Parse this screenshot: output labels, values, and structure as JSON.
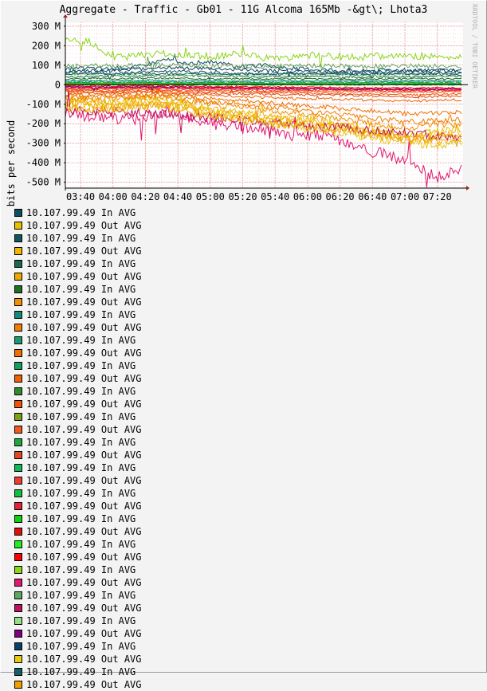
{
  "window": {
    "title": "Aggregate - Traffic - Gb01 - 11G Alcoma 165Mb -&gt\\; Lhota3",
    "watermark": "RRDTOOL / TOBI OETIKER"
  },
  "chart_data": {
    "type": "line",
    "title": "Aggregate - Traffic - Gb01 - 11G Alcoma 165Mb -&gt\\; Lhota3",
    "ylabel": "bits per second",
    "xlabel": "",
    "ylim": [
      -530,
      320
    ],
    "grid": true,
    "y_ticks": [
      {
        "value": 300,
        "label": "300 M"
      },
      {
        "value": 200,
        "label": "200 M"
      },
      {
        "value": 100,
        "label": "100 M"
      },
      {
        "value": 0,
        "label": "0"
      },
      {
        "value": -100,
        "label": "-100 M"
      },
      {
        "value": -200,
        "label": "-200 M"
      },
      {
        "value": -300,
        "label": "-300 M"
      },
      {
        "value": -400,
        "label": "-400 M"
      },
      {
        "value": -500,
        "label": "-500 M"
      }
    ],
    "x_ticks": [
      "03:40",
      "04:00",
      "04:20",
      "04:40",
      "05:00",
      "05:20",
      "05:40",
      "06:00",
      "06:20",
      "06:40",
      "07:00",
      "07:20"
    ],
    "series": [
      {
        "name": "10.107.99.49 In AVG",
        "color": "#0d4f5f",
        "values": [
          80,
          85,
          82,
          95,
          130,
          110,
          120,
          90,
          100,
          85,
          80,
          75,
          70,
          78,
          72,
          70,
          74
        ]
      },
      {
        "name": "10.107.99.49 Out AVG",
        "color": "#e8c000",
        "values": [
          -80,
          -85,
          -90,
          -70,
          -75,
          -100,
          -130,
          -140,
          -160,
          -170,
          -180,
          -200,
          -230,
          -250,
          -260,
          -240,
          -230
        ]
      },
      {
        "name": "10.107.99.49 In AVG",
        "color": "#14565c",
        "values": [
          60,
          62,
          58,
          65,
          70,
          66,
          60,
          58,
          55,
          60,
          56,
          54,
          52,
          58,
          55,
          60,
          58
        ]
      },
      {
        "name": "10.107.99.49 Out AVG",
        "color": "#f5b400",
        "values": [
          -90,
          -95,
          -100,
          -80,
          -85,
          -110,
          -140,
          -150,
          -170,
          -180,
          -200,
          -210,
          -220,
          -240,
          -270,
          -260,
          -250
        ]
      },
      {
        "name": "10.107.99.49 In AVG",
        "color": "#1a6a4e",
        "values": [
          40,
          42,
          45,
          44,
          48,
          46,
          44,
          42,
          40,
          42,
          44,
          40,
          38,
          42,
          40,
          44,
          42
        ]
      },
      {
        "name": "10.107.99.49 Out AVG",
        "color": "#f0a800",
        "values": [
          -100,
          -105,
          -110,
          -95,
          -100,
          -120,
          -150,
          -160,
          -180,
          -190,
          -200,
          -220,
          -240,
          -260,
          -280,
          -290,
          -300
        ]
      },
      {
        "name": "10.107.99.49 In AVG",
        "color": "#216e24",
        "values": [
          30,
          32,
          30,
          34,
          33,
          32,
          30,
          31,
          30,
          32,
          30,
          29,
          28,
          30,
          31,
          30,
          29
        ]
      },
      {
        "name": "10.107.99.49 Out AVG",
        "color": "#f09000",
        "values": [
          -70,
          -72,
          -75,
          -65,
          -68,
          -80,
          -100,
          -110,
          -130,
          -140,
          -160,
          -170,
          -190,
          -210,
          -220,
          -200,
          -210
        ]
      },
      {
        "name": "10.107.99.49 In AVG",
        "color": "#168a7a",
        "values": [
          20,
          22,
          21,
          24,
          23,
          22,
          21,
          20,
          22,
          21,
          20,
          22,
          21,
          20,
          22,
          21,
          20
        ]
      },
      {
        "name": "10.107.99.49 Out AVG",
        "color": "#f07e00",
        "values": [
          -60,
          -62,
          -64,
          -55,
          -58,
          -70,
          -90,
          -95,
          -110,
          -120,
          -140,
          -150,
          -170,
          -180,
          -190,
          -185,
          -180
        ]
      },
      {
        "name": "10.107.99.49 In AVG",
        "color": "#179c74",
        "values": [
          15,
          16,
          15,
          17,
          16,
          15,
          16,
          15,
          14,
          15,
          16,
          15,
          14,
          15,
          16,
          15,
          14
        ]
      },
      {
        "name": "10.107.99.49 Out AVG",
        "color": "#f07000",
        "values": [
          -50,
          -52,
          -55,
          -48,
          -50,
          -60,
          -70,
          -80,
          -90,
          -100,
          -110,
          -120,
          -130,
          -140,
          -150,
          -145,
          -140
        ]
      },
      {
        "name": "10.107.99.49 In AVG",
        "color": "#14a05c",
        "values": [
          10,
          11,
          10,
          12,
          11,
          10,
          11,
          10,
          9,
          10,
          11,
          10,
          9,
          10,
          11,
          10,
          9
        ]
      },
      {
        "name": "10.107.99.49 Out AVG",
        "color": "#f06200",
        "values": [
          -40,
          -42,
          -44,
          -38,
          -40,
          -48,
          -55,
          -60,
          -65,
          -70,
          -72,
          -75,
          -78,
          -80,
          -82,
          -80,
          -78
        ]
      },
      {
        "name": "10.107.99.49 In AVG",
        "color": "#2e8c2e",
        "values": [
          8,
          9,
          8,
          10,
          9,
          8,
          9,
          8,
          7,
          8,
          9,
          8,
          7,
          8,
          9,
          8,
          7
        ]
      },
      {
        "name": "10.107.99.49 Out AVG",
        "color": "#f05400",
        "values": [
          -30,
          -31,
          -32,
          -28,
          -30,
          -34,
          -36,
          -38,
          -40,
          -42,
          -44,
          -46,
          -48,
          -50,
          -52,
          -50,
          -48
        ]
      },
      {
        "name": "10.107.99.49 In AVG",
        "color": "#7ea014",
        "values": [
          6,
          7,
          6,
          8,
          7,
          6,
          7,
          6,
          5,
          6,
          7,
          6,
          5,
          6,
          7,
          6,
          5
        ]
      },
      {
        "name": "10.107.99.49 Out AVG",
        "color": "#f05a1e",
        "values": [
          -25,
          -26,
          -27,
          -24,
          -25,
          -28,
          -30,
          -31,
          -32,
          -33,
          -34,
          -35,
          -36,
          -37,
          -38,
          -37,
          -36
        ]
      },
      {
        "name": "10.107.99.49 In AVG",
        "color": "#1ea83c",
        "values": [
          4,
          5,
          4,
          6,
          5,
          4,
          5,
          4,
          3,
          4,
          5,
          4,
          3,
          4,
          5,
          4,
          3
        ]
      },
      {
        "name": "10.107.99.49 Out AVG",
        "color": "#e04a1e",
        "values": [
          -35,
          -38,
          -40,
          -36,
          -38,
          -42,
          -45,
          -46,
          -48,
          -50,
          -52,
          -54,
          -56,
          -58,
          -62,
          -60,
          -58
        ]
      },
      {
        "name": "10.107.99.49 In AVG",
        "color": "#10b85a",
        "values": [
          3,
          4,
          3,
          5,
          4,
          3,
          4,
          3,
          2,
          3,
          4,
          3,
          2,
          3,
          4,
          3,
          2
        ]
      },
      {
        "name": "10.107.99.49 Out AVG",
        "color": "#f03c2c",
        "values": [
          -20,
          -21,
          -22,
          -19,
          -20,
          -22,
          -24,
          -25,
          -26,
          -27,
          -28,
          -29,
          -30,
          -31,
          -32,
          -31,
          -30
        ]
      },
      {
        "name": "10.107.99.49 In AVG",
        "color": "#10c040",
        "values": [
          2,
          3,
          2,
          4,
          3,
          2,
          3,
          2,
          1,
          2,
          3,
          2,
          1,
          2,
          3,
          2,
          1
        ]
      },
      {
        "name": "10.107.99.49 Out AVG",
        "color": "#e82038",
        "values": [
          -15,
          -16,
          -17,
          -14,
          -15,
          -17,
          -19,
          -20,
          -21,
          -22,
          -23,
          -24,
          -25,
          -26,
          -27,
          -26,
          -25
        ]
      },
      {
        "name": "10.107.99.49 In AVG",
        "color": "#10d010",
        "values": [
          1,
          2,
          1,
          3,
          2,
          1,
          2,
          1,
          0,
          1,
          2,
          1,
          0,
          1,
          2,
          1,
          0
        ]
      },
      {
        "name": "10.107.99.49 Out AVG",
        "color": "#e01010",
        "values": [
          -10,
          -11,
          -12,
          -9,
          -10,
          -12,
          -14,
          -15,
          -16,
          -17,
          -18,
          -19,
          -20,
          -21,
          -22,
          -21,
          -20
        ]
      },
      {
        "name": "10.107.99.49 In AVG",
        "color": "#20f020",
        "values": [
          0,
          1,
          0,
          2,
          1,
          0,
          1,
          0,
          0,
          1,
          0,
          1,
          0,
          1,
          0,
          1,
          0
        ]
      },
      {
        "name": "10.107.99.49 Out AVG",
        "color": "#ff0000",
        "values": [
          -5,
          -6,
          -7,
          -4,
          -5,
          -7,
          -9,
          -10,
          -11,
          -12,
          -13,
          -14,
          -15,
          -16,
          -17,
          -16,
          -15
        ]
      },
      {
        "name": "10.107.99.49 In AVG",
        "color": "#8ad61a",
        "values": [
          230,
          220,
          140,
          150,
          160,
          150,
          145,
          160,
          140,
          140,
          150,
          145,
          140,
          150,
          145,
          150,
          140
        ]
      },
      {
        "name": "10.107.99.49 Out AVG",
        "color": "#e01870",
        "values": [
          -150,
          -160,
          -170,
          -180,
          -140,
          -170,
          -200,
          -220,
          -230,
          -260,
          -250,
          -280,
          -330,
          -360,
          -400,
          -480,
          -420
        ]
      },
      {
        "name": "10.107.99.49 In AVG",
        "color": "#60a860",
        "values": [
          100,
          98,
          96,
          100,
          104,
          100,
          98,
          96,
          94,
          96,
          98,
          96,
          94,
          96,
          98,
          96,
          94
        ]
      },
      {
        "name": "10.107.99.49 Out AVG",
        "color": "#c01060",
        "values": [
          -130,
          -135,
          -140,
          -145,
          -150,
          -160,
          -170,
          -180,
          -190,
          -200,
          -210,
          -220,
          -230,
          -240,
          -250,
          -260,
          -270
        ]
      },
      {
        "name": "10.107.99.49 In AVG",
        "color": "#98dc88",
        "values": [
          50,
          52,
          50,
          54,
          52,
          50,
          52,
          50,
          48,
          50,
          52,
          50,
          48,
          50,
          52,
          50,
          48
        ]
      },
      {
        "name": "10.107.99.49 Out AVG",
        "color": "#800080",
        "values": [
          -12,
          -13,
          -14,
          -11,
          -12,
          -14,
          -16,
          -17,
          -18,
          -19,
          -20,
          -21,
          -22,
          -23,
          -24,
          -23,
          -22
        ]
      },
      {
        "name": "10.107.99.49 In AVG",
        "color": "#0d4066",
        "values": [
          70,
          72,
          74,
          80,
          90,
          84,
          80,
          76,
          72,
          70,
          68,
          66,
          64,
          70,
          72,
          74,
          70
        ]
      },
      {
        "name": "10.107.99.49 Out AVG",
        "color": "#e8c818",
        "values": [
          -110,
          -115,
          -120,
          -100,
          -105,
          -125,
          -160,
          -170,
          -190,
          -210,
          -230,
          -250,
          -260,
          -280,
          -300,
          -310,
          -290
        ]
      },
      {
        "name": "10.107.99.49 In AVG",
        "color": "#14606a",
        "values": [
          55,
          56,
          55,
          58,
          57,
          55,
          56,
          55,
          54,
          55,
          56,
          55,
          54,
          55,
          56,
          55,
          54
        ]
      },
      {
        "name": "10.107.99.49 Out AVG",
        "color": "#f0a000",
        "values": [
          -120,
          -125,
          -130,
          -110,
          -115,
          -135,
          -165,
          -175,
          -195,
          -205,
          -215,
          -230,
          -250,
          -270,
          -280,
          -270,
          -260
        ]
      }
    ]
  }
}
